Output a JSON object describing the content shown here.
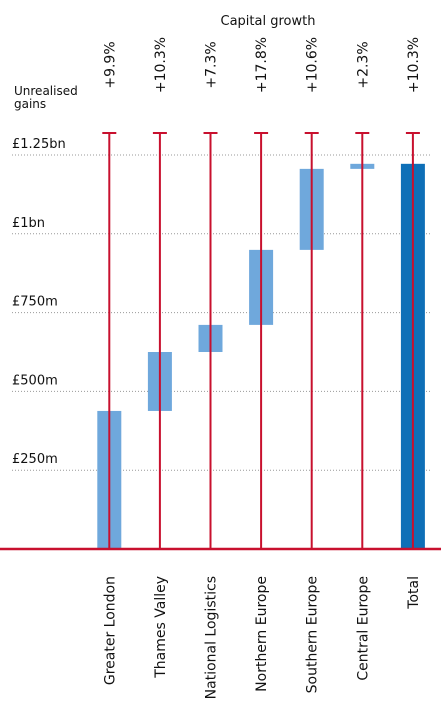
{
  "chart_data": {
    "type": "waterfall",
    "title": "Capital growth",
    "annotation_label": [
      "Unrealised",
      "gains"
    ],
    "categories": [
      "Greater London",
      "Thames Valley",
      "National Logistics",
      "Northern Europe",
      "Southern Europe",
      "Central Europe",
      "Total"
    ],
    "annotations": [
      "+9.9%",
      "+10.3%",
      "+7.3%",
      "+17.8%",
      "+10.6%",
      "+2.3%",
      "+10.3%"
    ],
    "values": [
      438,
      187,
      86,
      238,
      257,
      16,
      1222
    ],
    "is_total": [
      false,
      false,
      false,
      false,
      false,
      false,
      true
    ],
    "color": "#6fa8dc",
    "total_color": "#0e6fb7",
    "line_color": "#c8102e",
    "ylim": [
      0,
      1250
    ],
    "yticks": [
      {
        "value": 250,
        "label": "£250m"
      },
      {
        "value": 500,
        "label": "£500m"
      },
      {
        "value": 750,
        "label": "£750m"
      },
      {
        "value": 1000,
        "label": "£1bn"
      },
      {
        "value": 1250,
        "label": "£1.25bn"
      }
    ],
    "grid": true
  }
}
